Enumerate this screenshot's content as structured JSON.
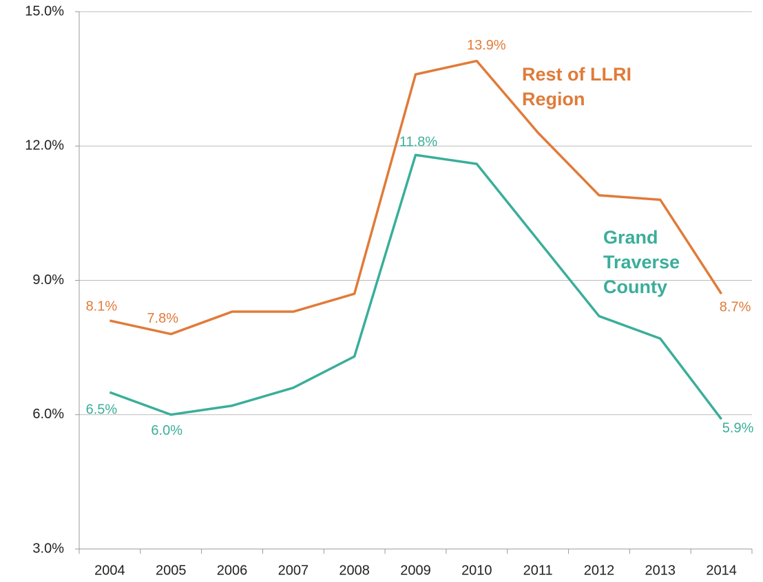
{
  "chart_data": {
    "type": "line",
    "categories": [
      "2004",
      "2005",
      "2006",
      "2007",
      "2008",
      "2009",
      "2010",
      "2011",
      "2012",
      "2013",
      "2014"
    ],
    "series": [
      {
        "name": "Rest of LLRI Region",
        "color": "#e07b39",
        "values": [
          8.1,
          7.8,
          8.3,
          8.3,
          8.7,
          13.6,
          13.9,
          12.3,
          10.9,
          10.8,
          8.7
        ],
        "value_labels": [
          "8.1%",
          "7.8%",
          null,
          null,
          null,
          null,
          "13.9%",
          null,
          null,
          null,
          "8.7%"
        ]
      },
      {
        "name": "Grand Traverse County",
        "color": "#3aae9a",
        "values": [
          6.5,
          6.0,
          6.2,
          6.6,
          7.3,
          11.8,
          11.6,
          9.9,
          8.2,
          7.7,
          5.9
        ],
        "value_labels": [
          "6.5%",
          "6.0%",
          null,
          null,
          null,
          "11.8%",
          null,
          null,
          null,
          null,
          "5.9%"
        ]
      }
    ],
    "ylim": [
      3,
      15
    ],
    "yticks": [
      {
        "value": 3,
        "label": "3.0%"
      },
      {
        "value": 6,
        "label": "6.0%"
      },
      {
        "value": 9,
        "label": "9.0%"
      },
      {
        "value": 12,
        "label": "12.0%"
      },
      {
        "value": 15,
        "label": "15.0%"
      }
    ],
    "grid": true
  }
}
